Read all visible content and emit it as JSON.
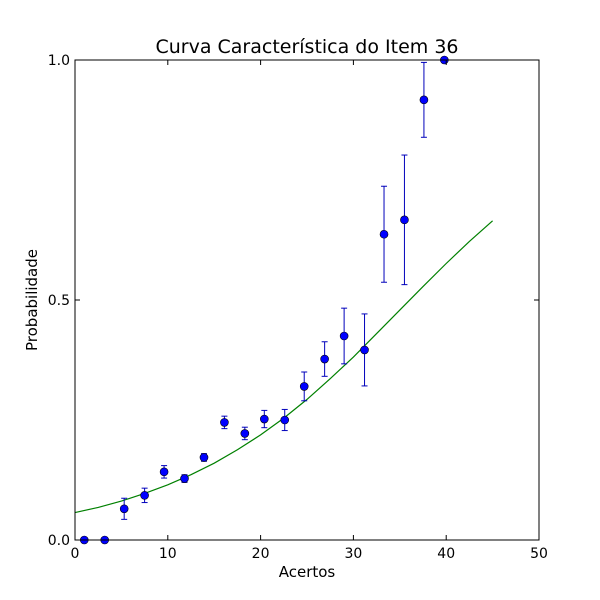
{
  "chart_data": {
    "type": "scatter",
    "title": "Curva Característica do Item 36",
    "xlabel": "Acertos",
    "ylabel": "Probabilidade",
    "xlim": [
      0,
      50
    ],
    "ylim": [
      0,
      1
    ],
    "x_ticks": [
      0,
      10,
      20,
      30,
      40,
      50
    ],
    "x_tick_labels": [
      "0",
      "10",
      "20",
      "30",
      "40",
      "50"
    ],
    "y_ticks": [
      0,
      0.5,
      1
    ],
    "y_tick_labels": [
      "0.0",
      "0.5",
      "1.0"
    ],
    "grid": false,
    "legend": "none",
    "series": [
      {
        "kind": "points-with-error-bars",
        "color": "#0000ff",
        "errorbar_color": "#0000bb",
        "points": [
          {
            "x": 1.0,
            "y": 0.0,
            "err": 0.0
          },
          {
            "x": 3.2,
            "y": 0.0,
            "err": 0.0
          },
          {
            "x": 5.3,
            "y": 0.065,
            "err": 0.022
          },
          {
            "x": 7.5,
            "y": 0.093,
            "err": 0.015
          },
          {
            "x": 9.6,
            "y": 0.142,
            "err": 0.013
          },
          {
            "x": 11.8,
            "y": 0.128,
            "err": 0.008
          },
          {
            "x": 13.9,
            "y": 0.172,
            "err": 0.008
          },
          {
            "x": 16.1,
            "y": 0.245,
            "err": 0.013
          },
          {
            "x": 18.3,
            "y": 0.222,
            "err": 0.013
          },
          {
            "x": 20.4,
            "y": 0.252,
            "err": 0.018
          },
          {
            "x": 22.6,
            "y": 0.25,
            "err": 0.022
          },
          {
            "x": 24.7,
            "y": 0.32,
            "err": 0.03
          },
          {
            "x": 26.9,
            "y": 0.377,
            "err": 0.036
          },
          {
            "x": 29.0,
            "y": 0.425,
            "err": 0.058
          },
          {
            "x": 31.2,
            "y": 0.396,
            "err": 0.075
          },
          {
            "x": 33.3,
            "y": 0.637,
            "err": 0.1
          },
          {
            "x": 35.5,
            "y": 0.667,
            "err": 0.135
          },
          {
            "x": 37.6,
            "y": 0.917,
            "err": 0.078
          },
          {
            "x": 39.8,
            "y": 1.0,
            "err": 0.0
          }
        ]
      },
      {
        "kind": "line",
        "color": "#008000",
        "x": [
          0,
          2.5,
          5,
          7.5,
          10,
          12.5,
          15,
          17.5,
          20,
          22.5,
          25,
          27.5,
          30,
          32.5,
          35,
          37.5,
          40,
          42.5,
          45
        ],
        "y": [
          0.057,
          0.068,
          0.081,
          0.097,
          0.115,
          0.136,
          0.16,
          0.188,
          0.219,
          0.254,
          0.293,
          0.336,
          0.381,
          0.43,
          0.479,
          0.528,
          0.576,
          0.622,
          0.665
        ]
      }
    ]
  }
}
